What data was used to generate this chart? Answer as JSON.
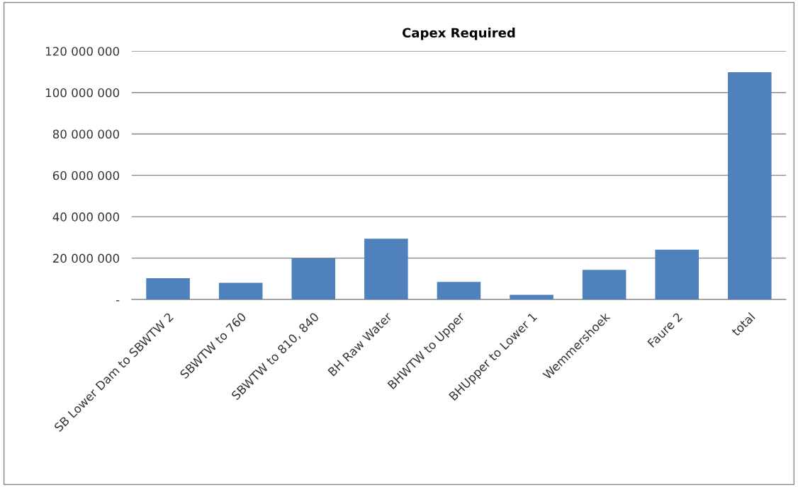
{
  "chart_data": {
    "type": "bar",
    "title": "Capex Required",
    "categories": [
      "SB Lower Dam to SBWTW 2",
      "SBWTW to 760",
      "SBWTW to 810, 840",
      "BH Raw Water",
      "BHWTW to Upper",
      "BHUpper to Lower 1",
      "Wemmershoek",
      "Faure 2",
      "total"
    ],
    "values": [
      10300000,
      8100000,
      19900000,
      29400000,
      8500000,
      2300000,
      14300000,
      24100000,
      109800000
    ],
    "color": "#4f81bd",
    "ylim": [
      0,
      120000000
    ],
    "yticks": [
      {
        "value": 0,
        "label": "-"
      },
      {
        "value": 20000000,
        "label": "20 000 000"
      },
      {
        "value": 40000000,
        "label": "40 000 000"
      },
      {
        "value": 60000000,
        "label": "60 000 000"
      },
      {
        "value": 80000000,
        "label": "80 000 000"
      },
      {
        "value": 100000000,
        "label": "100 000 000"
      },
      {
        "value": 120000000,
        "label": "120 000 000"
      }
    ],
    "grid": "y",
    "legend": false
  }
}
